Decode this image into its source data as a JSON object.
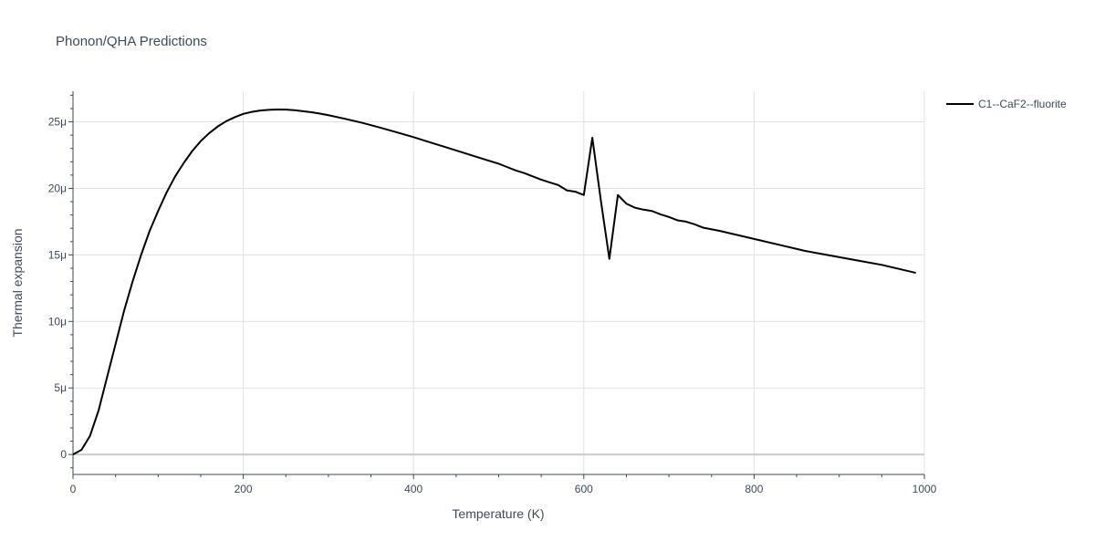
{
  "chart_data": {
    "type": "line",
    "title": "Phonon/QHA Predictions",
    "xlabel": "Temperature (K)",
    "ylabel": "Thermal expansion",
    "xlim": [
      0,
      1000
    ],
    "ylim": [
      -1.5e-06,
      2.73e-05
    ],
    "x_ticks": [
      0,
      200,
      400,
      600,
      800,
      1000
    ],
    "x_tick_labels": [
      "0",
      "200",
      "400",
      "600",
      "800",
      "1000"
    ],
    "y_ticks": [
      0,
      5e-06,
      1e-05,
      1.5e-05,
      2e-05,
      2.5e-05
    ],
    "y_tick_labels": [
      "0",
      "5μ",
      "10μ",
      "15μ",
      "20μ",
      "25μ"
    ],
    "grid": true,
    "legend_position": "top-right",
    "series": [
      {
        "name": "C1--CaF2--fluorite",
        "color": "#000000",
        "x": [
          0,
          10,
          20,
          30,
          40,
          50,
          60,
          70,
          80,
          90,
          100,
          110,
          120,
          130,
          140,
          150,
          160,
          170,
          180,
          190,
          200,
          210,
          220,
          230,
          240,
          250,
          260,
          270,
          280,
          290,
          300,
          320,
          340,
          360,
          380,
          400,
          420,
          440,
          460,
          480,
          500,
          510,
          520,
          530,
          540,
          550,
          560,
          570,
          580,
          590,
          600,
          610,
          620,
          630,
          640,
          650,
          660,
          670,
          680,
          690,
          700,
          710,
          720,
          730,
          740,
          760,
          780,
          800,
          830,
          860,
          890,
          920,
          950,
          990
        ],
        "y": [
          0,
          3.5e-07,
          1.4e-06,
          3.3e-06,
          5.8e-06,
          8.3e-06,
          1.08e-05,
          1.3e-05,
          1.5e-05,
          1.68e-05,
          1.83e-05,
          1.97e-05,
          2.09e-05,
          2.19e-05,
          2.28e-05,
          2.355e-05,
          2.415e-05,
          2.465e-05,
          2.505e-05,
          2.535e-05,
          2.56e-05,
          2.575e-05,
          2.585e-05,
          2.59e-05,
          2.593e-05,
          2.592e-05,
          2.588e-05,
          2.58e-05,
          2.572e-05,
          2.562e-05,
          2.55e-05,
          2.522e-05,
          2.492e-05,
          2.458e-05,
          2.422e-05,
          2.385e-05,
          2.345e-05,
          2.305e-05,
          2.265e-05,
          2.225e-05,
          2.185e-05,
          2.16e-05,
          2.135e-05,
          2.115e-05,
          2.09e-05,
          2.065e-05,
          2.045e-05,
          2.025e-05,
          1.985e-05,
          1.975e-05,
          1.95e-05,
          2.38e-05,
          1.91e-05,
          1.47e-05,
          1.95e-05,
          1.885e-05,
          1.855e-05,
          1.84e-05,
          1.83e-05,
          1.805e-05,
          1.785e-05,
          1.76e-05,
          1.75e-05,
          1.73e-05,
          1.705e-05,
          1.68e-05,
          1.65e-05,
          1.62e-05,
          1.575e-05,
          1.53e-05,
          1.495e-05,
          1.46e-05,
          1.425e-05,
          1.365e-05
        ]
      }
    ]
  }
}
